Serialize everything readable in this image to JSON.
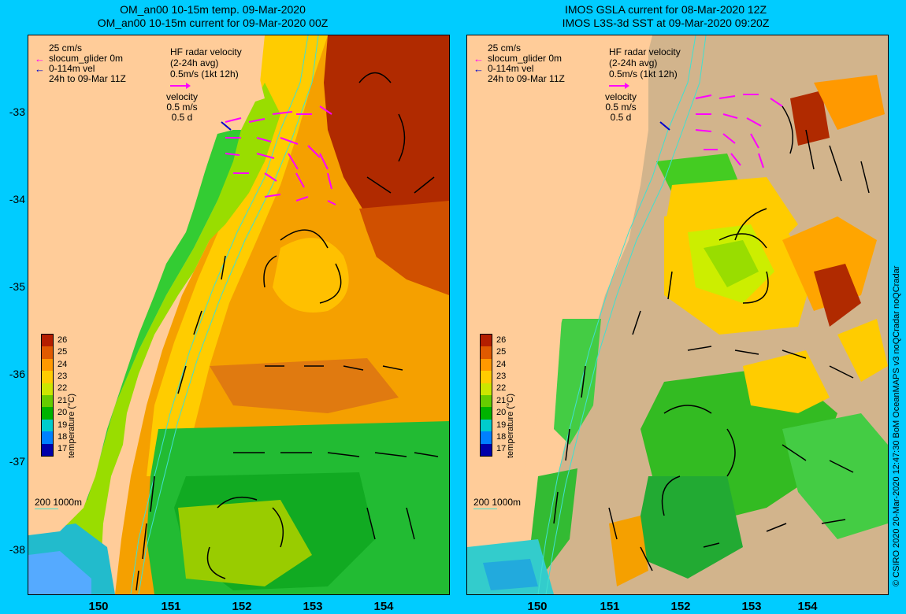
{
  "left_panel": {
    "title_line1": "OM_an00 10-15m temp. 09-Mar-2020",
    "title_line2": "OM_an00 10-15m current for 09-Mar-2020 00Z",
    "legend": {
      "scale": "25 cm/s",
      "glider": "slocum_glider 0m",
      "vel": "0-114m vel",
      "window": "24h to 09-Mar 11Z"
    },
    "hf": {
      "line1": "HF radar velocity",
      "line2": "(2-24h avg)",
      "line3": "0.5m/s (1kt 12h)"
    },
    "velocity": {
      "line1": "velocity",
      "line2": "0.5 m/s",
      "line3": "0.5 d"
    },
    "colorbar_title": "temperature (°C)",
    "depth_legend": "200  1000m"
  },
  "right_panel": {
    "title_line1": "IMOS GSLA current for 08-Mar-2020 12Z",
    "title_line2": "IMOS L3S-3d SST at 09-Mar-2020 09:20Z",
    "legend": {
      "scale": "25 cm/s",
      "glider": "slocum_glider 0m",
      "vel": "0-114m vel",
      "window": "24h to 09-Mar 11Z"
    },
    "hf": {
      "line1": "HF radar velocity",
      "line2": "(2-24h avg)",
      "line3": "0.5m/s (1kt 12h)"
    },
    "velocity": {
      "line1": "velocity",
      "line2": "0.5 m/s",
      "line3": "0.5 d"
    },
    "colorbar_title": "temperature (°C)",
    "depth_legend": "200  1000m"
  },
  "colorbar_ticks": [
    "26",
    "25",
    "24",
    "23",
    "22",
    "21",
    "20",
    "19",
    "18",
    "17"
  ],
  "colorbar_colors": [
    "#b41e00",
    "#e05a00",
    "#ff9900",
    "#ffcc00",
    "#cce600",
    "#66cc00",
    "#00b300",
    "#00cccc",
    "#0080ff",
    "#0000aa"
  ],
  "lat_ticks": [
    "-33",
    "-34",
    "-35",
    "-36",
    "-37",
    "-38"
  ],
  "lon_ticks": [
    "150",
    "151",
    "152",
    "153",
    "154"
  ],
  "credit": "© CSIRO 2020  20-Mar-2020 12:47:30 BoM OceanMAPS v3 noQCradar noQCradar",
  "colors": {
    "background": "#00ccff",
    "land": "#ffcc99",
    "hf_arrow": "#ff00ff",
    "glider": "#0000cc",
    "isobath": "#40e0d0"
  }
}
